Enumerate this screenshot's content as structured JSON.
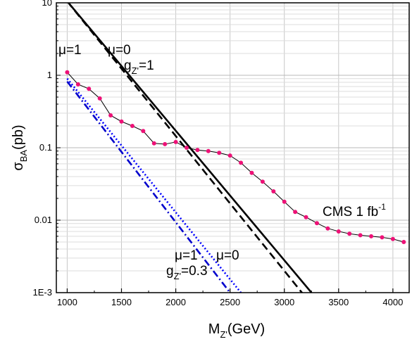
{
  "chart_data": {
    "type": "line",
    "x_scale": "linear",
    "y_scale": "log",
    "xlim": [
      900,
      4150
    ],
    "ylim": [
      0.001,
      10
    ],
    "grid": true,
    "xlabel": {
      "main": "M",
      "sub": "Z'",
      "tail": "(GeV)"
    },
    "ylabel": {
      "main": "σ",
      "sub": "BA",
      "tail": "(pb)"
    },
    "x_ticks": [
      {
        "value": 1000,
        "label": "1000"
      },
      {
        "value": 1500,
        "label": "1500"
      },
      {
        "value": 2000,
        "label": "2000"
      },
      {
        "value": 2500,
        "label": "2500"
      },
      {
        "value": 3000,
        "label": "3000"
      },
      {
        "value": 3500,
        "label": "3500"
      },
      {
        "value": 4000,
        "label": "4000"
      }
    ],
    "y_ticks": [
      {
        "value": 0.001,
        "label": "1E-3"
      },
      {
        "value": 0.01,
        "label": "0.01"
      },
      {
        "value": 0.1,
        "label": "0.1"
      },
      {
        "value": 1,
        "label": "1"
      },
      {
        "value": 10,
        "label": "10"
      }
    ],
    "series": [
      {
        "id": "gz1-mu0",
        "color": "#000000",
        "style": "solid",
        "x": [
          1000,
          3250
        ],
        "y": [
          10.5,
          0.001
        ]
      },
      {
        "id": "gz1-mu1",
        "color": "#000000",
        "style": "dashed",
        "x": [
          1000,
          3200
        ],
        "y": [
          10.5,
          0.00085
        ]
      },
      {
        "id": "gz03-mu0",
        "color": "#0000ff",
        "style": "dotted",
        "x": [
          1000,
          2600
        ],
        "y": [
          0.9,
          0.001
        ]
      },
      {
        "id": "gz03-mu1",
        "color": "#0000cc",
        "style": "dashdot",
        "x": [
          1000,
          2500
        ],
        "y": [
          0.82,
          0.001
        ]
      },
      {
        "id": "cms",
        "name": "CMS 1 fb",
        "name_sup": "-1",
        "color": "#000000",
        "marker_color": "#ee1177",
        "style": "solid",
        "markers": true,
        "x": [
          1000,
          1100,
          1200,
          1300,
          1400,
          1500,
          1600,
          1700,
          1800,
          1900,
          2000,
          2100,
          2200,
          2300,
          2400,
          2500,
          2600,
          2700,
          2800,
          2900,
          3000,
          3100,
          3200,
          3300,
          3400,
          3500,
          3600,
          3700,
          3800,
          3900,
          4000,
          4100
        ],
        "y": [
          1.1,
          0.75,
          0.65,
          0.48,
          0.28,
          0.23,
          0.2,
          0.17,
          0.115,
          0.112,
          0.12,
          0.1,
          0.093,
          0.09,
          0.085,
          0.078,
          0.062,
          0.045,
          0.034,
          0.025,
          0.018,
          0.013,
          0.011,
          0.0091,
          0.0077,
          0.007,
          0.0065,
          0.0062,
          0.006,
          0.0058,
          0.0055,
          0.005
        ]
      }
    ],
    "annotations": [
      {
        "id": "mu1-top",
        "text": "μ=1"
      },
      {
        "id": "mu0-top",
        "text": "μ=0"
      },
      {
        "id": "gz1",
        "main": "g",
        "sub": "Z'",
        "tail": "=1"
      },
      {
        "id": "cms-label",
        "main": "CMS 1 fb",
        "sup": "-1"
      },
      {
        "id": "mu1-bot",
        "text": "μ=1"
      },
      {
        "id": "mu0-bot",
        "text": "μ=0"
      },
      {
        "id": "gz03",
        "main": "g",
        "sub": "Z'",
        "tail": "=0.3"
      }
    ]
  }
}
